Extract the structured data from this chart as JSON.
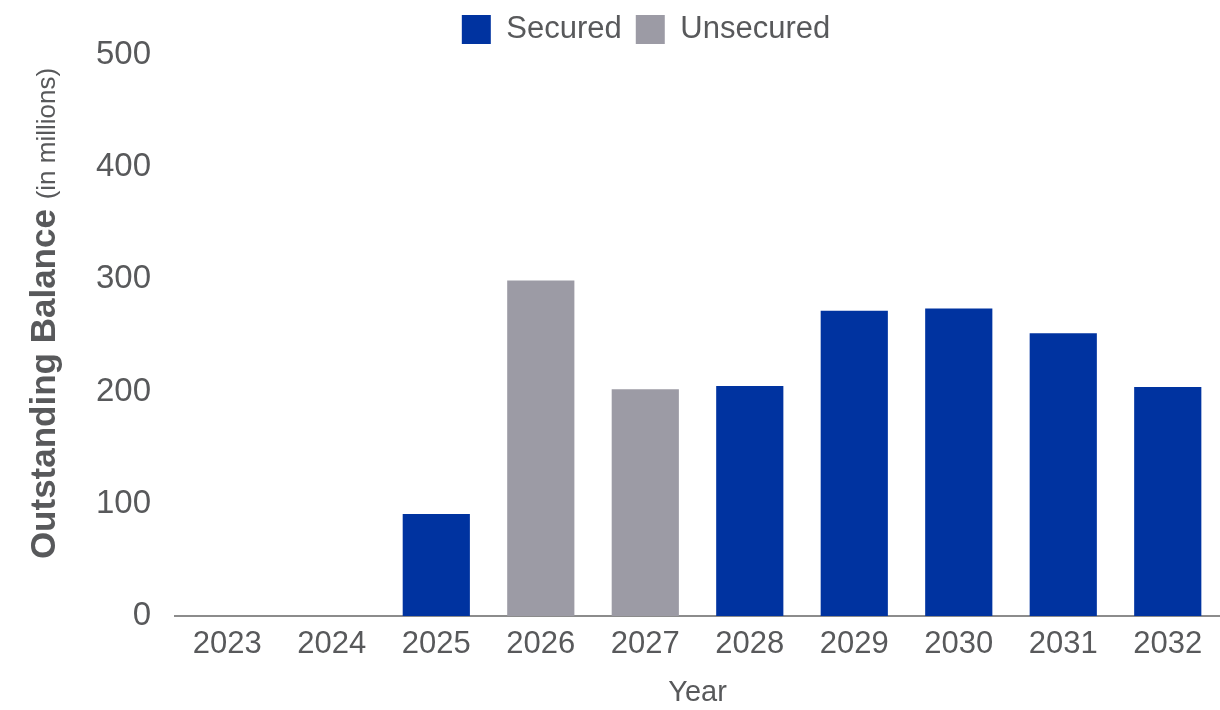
{
  "chart_data": {
    "type": "bar",
    "legend": "top",
    "grid": false,
    "categories": [
      "2023",
      "2024",
      "2025",
      "2026",
      "2027",
      "2028",
      "2029",
      "2030",
      "2031",
      "2032"
    ],
    "series": [
      {
        "name": "Secured",
        "color": "#0033a0",
        "values": [
          null,
          null,
          91,
          null,
          null,
          205,
          272,
          274,
          252,
          204
        ]
      },
      {
        "name": "Unsecured",
        "color": "#9c9ba5",
        "values": [
          null,
          null,
          null,
          299,
          202,
          null,
          null,
          null,
          null,
          null
        ]
      }
    ],
    "xlabel": "Year",
    "ylabel": "Outstanding Balance (in millions)",
    "ylim": [
      0,
      500
    ],
    "yticks": [
      0,
      100,
      200,
      300,
      400,
      500
    ]
  }
}
